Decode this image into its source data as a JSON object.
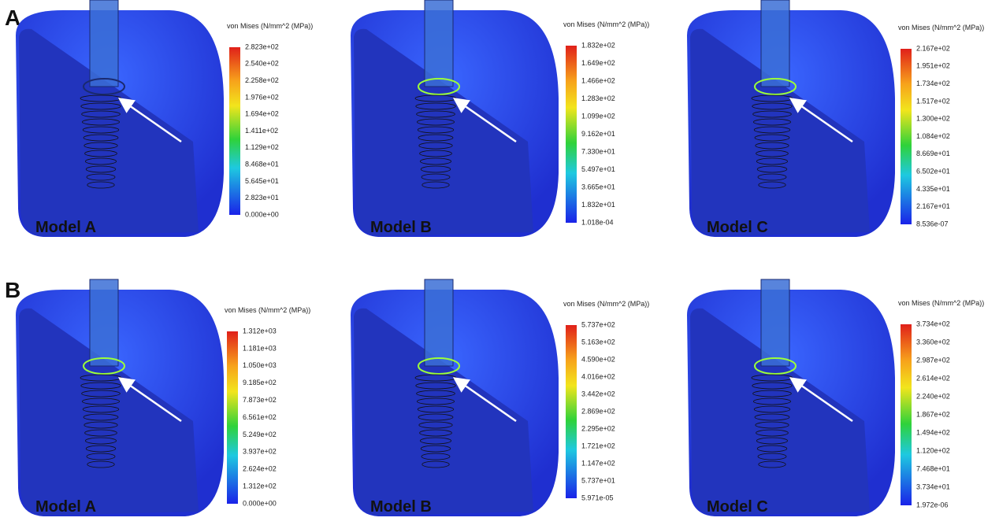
{
  "rows": [
    {
      "label": "A",
      "panels": [
        {
          "model": "Model A",
          "legend_title": "von Mises (N/mm^2 (MPa))",
          "ticks": [
            "2.823e+02",
            "2.540e+02",
            "2.258e+02",
            "1.976e+02",
            "1.694e+02",
            "1.411e+02",
            "1.129e+02",
            "8.468e+01",
            "5.645e+01",
            "2.823e+01",
            "0.000e+00"
          ]
        },
        {
          "model": "Model B",
          "legend_title": "von Mises (N/mm^2 (MPa))",
          "ticks": [
            "1.832e+02",
            "1.649e+02",
            "1.466e+02",
            "1.283e+02",
            "1.099e+02",
            "9.162e+01",
            "7.330e+01",
            "5.497e+01",
            "3.665e+01",
            "1.832e+01",
            "1.018e-04"
          ]
        },
        {
          "model": "Model C",
          "legend_title": "von Mises (N/mm^2 (MPa))",
          "ticks": [
            "2.167e+02",
            "1.951e+02",
            "1.734e+02",
            "1.517e+02",
            "1.300e+02",
            "1.084e+02",
            "8.669e+01",
            "6.502e+01",
            "4.335e+01",
            "2.167e+01",
            "8.536e-07"
          ]
        }
      ]
    },
    {
      "label": "B",
      "panels": [
        {
          "model": "Model A",
          "legend_title": "von Mises (N/mm^2 (MPa))",
          "ticks": [
            "1.312e+03",
            "1.181e+03",
            "1.050e+03",
            "9.185e+02",
            "7.873e+02",
            "6.561e+02",
            "5.249e+02",
            "3.937e+02",
            "2.624e+02",
            "1.312e+02",
            "0.000e+00"
          ]
        },
        {
          "model": "Model B",
          "legend_title": "von Mises (N/mm^2 (MPa))",
          "ticks": [
            "5.737e+02",
            "5.163e+02",
            "4.590e+02",
            "4.016e+02",
            "3.442e+02",
            "2.869e+02",
            "2.295e+02",
            "1.721e+02",
            "1.147e+02",
            "5.737e+01",
            "5.971e-05"
          ]
        },
        {
          "model": "Model C",
          "legend_title": "von Mises (N/mm^2 (MPa))",
          "ticks": [
            "3.734e+02",
            "3.360e+02",
            "2.987e+02",
            "2.614e+02",
            "2.240e+02",
            "1.867e+02",
            "1.494e+02",
            "1.120e+02",
            "7.468e+01",
            "3.734e+01",
            "1.972e-06"
          ]
        }
      ]
    }
  ]
}
